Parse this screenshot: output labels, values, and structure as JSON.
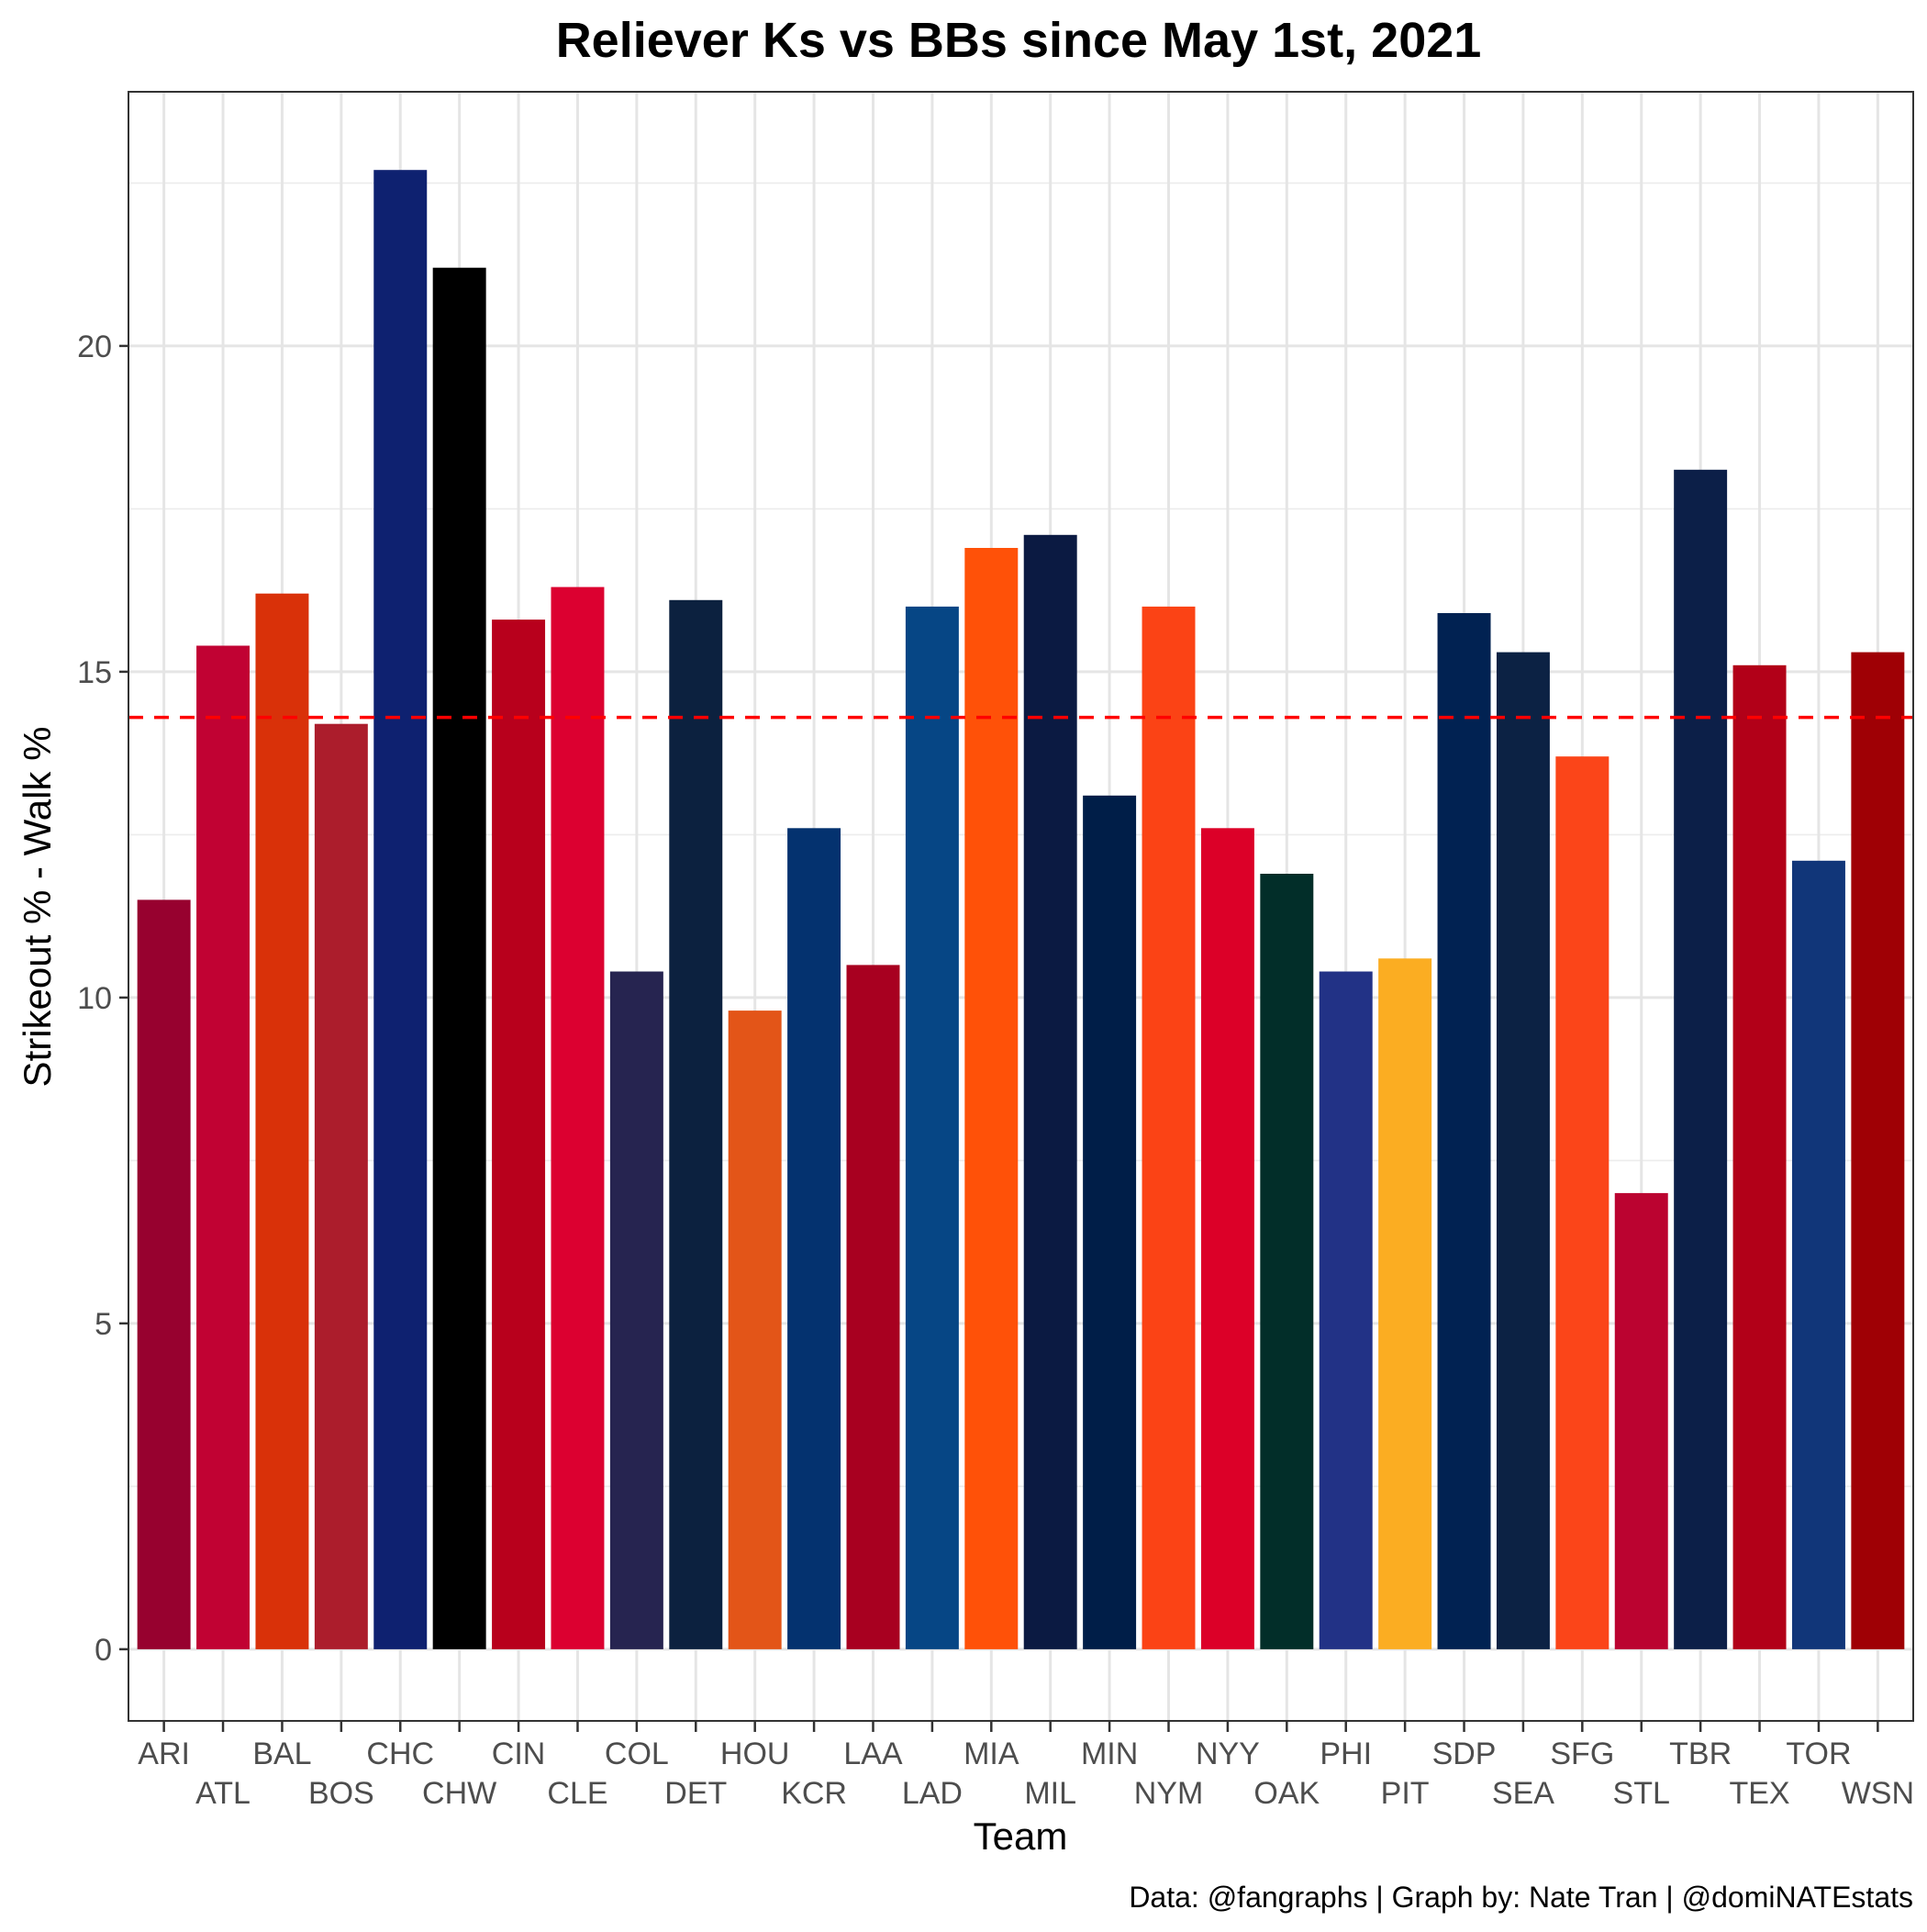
{
  "chart_data": {
    "type": "bar",
    "title": "Reliever Ks vs BBs since May 1st, 2021",
    "xlabel": "Team",
    "ylabel": "Strikeout % - Walk %",
    "caption": "Data: @fangraphs | Graph by: Nate Tran | @domiNATEstats",
    "ylim": [
      -1.1,
      23.9
    ],
    "yticks": [
      0,
      5,
      10,
      15,
      20
    ],
    "ytick_labels": [
      "0",
      "5",
      "10",
      "15",
      "20"
    ],
    "grid": true,
    "legend": "none",
    "reference_line": {
      "y": 14.3,
      "style": "dashed",
      "color": "#ff0000"
    },
    "categories": [
      "ARI",
      "ATL",
      "BAL",
      "BOS",
      "CHC",
      "CHW",
      "CIN",
      "CLE",
      "COL",
      "DET",
      "HOU",
      "KCR",
      "LAA",
      "LAD",
      "MIA",
      "MIL",
      "MIN",
      "NYM",
      "NYY",
      "OAK",
      "PHI",
      "PIT",
      "SDP",
      "SEA",
      "SFG",
      "STL",
      "TBR",
      "TEX",
      "TOR",
      "WSN"
    ],
    "values": [
      11.5,
      15.4,
      16.2,
      14.2,
      22.7,
      21.2,
      15.8,
      16.3,
      10.4,
      16.1,
      9.8,
      12.6,
      10.5,
      16.0,
      16.9,
      17.1,
      13.1,
      16.0,
      12.6,
      11.9,
      10.4,
      10.6,
      15.9,
      15.3,
      13.7,
      7.0,
      18.1,
      15.1,
      12.1,
      15.3
    ],
    "colors": [
      "#97012f",
      "#c10233",
      "#d93109",
      "#ac1d2c",
      "#0e2170",
      "#000000",
      "#b8001c",
      "#dc0030",
      "#262450",
      "#0c213f",
      "#e35518",
      "#04326f",
      "#a80020",
      "#064685",
      "#ff5108",
      "#0b1a42",
      "#001e48",
      "#fb4315",
      "#dc0028",
      "#022e29",
      "#223286",
      "#fbad22",
      "#012252",
      "#0c2244",
      "#fb4519",
      "#bb0330",
      "#0c1f48",
      "#b20018",
      "#113679",
      "#9f0005"
    ]
  }
}
